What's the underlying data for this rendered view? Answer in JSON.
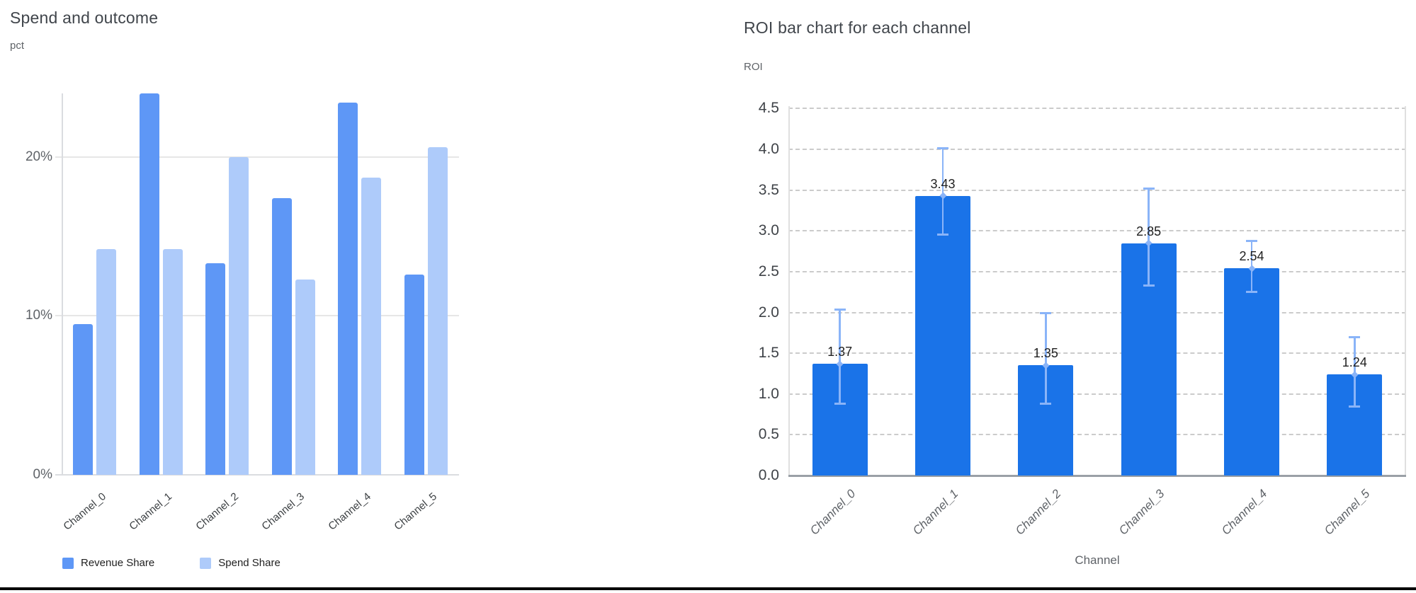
{
  "page": {
    "background": "#ffffff",
    "bottom_rule_color": "#000000"
  },
  "chart_data": [
    {
      "type": "bar",
      "title": "Spend and outcome",
      "ylabel": "pct",
      "xlabel": "",
      "categories": [
        "Channel_0",
        "Channel_1",
        "Channel_2",
        "Channel_3",
        "Channel_4",
        "Channel_5"
      ],
      "series": [
        {
          "name": "Revenue Share",
          "color": "#5e97f6",
          "values": [
            9.5,
            24.0,
            13.3,
            17.4,
            23.4,
            12.6
          ]
        },
        {
          "name": "Spend Share",
          "color": "#aecbfa",
          "values": [
            14.2,
            14.2,
            20.0,
            12.3,
            18.7,
            20.6
          ]
        }
      ],
      "yticks": [
        {
          "v": 0,
          "label": "0%"
        },
        {
          "v": 10,
          "label": "10%"
        },
        {
          "v": 20,
          "label": "20%"
        }
      ],
      "ylim": [
        0,
        24
      ],
      "grid": "horizontal-solid",
      "legend_position": "bottom-left",
      "value_unit": "percent"
    },
    {
      "type": "bar",
      "title": "ROI bar chart for each channel",
      "ylabel": "ROI",
      "xlabel": "Channel",
      "categories": [
        "Channel_0",
        "Channel_1",
        "Channel_2",
        "Channel_3",
        "Channel_4",
        "Channel_5"
      ],
      "values": [
        1.37,
        3.43,
        1.35,
        2.85,
        2.54,
        1.24
      ],
      "value_labels": [
        "1.37",
        "3.43",
        "1.35",
        "2.85",
        "2.54",
        "1.24"
      ],
      "error_low": [
        0.88,
        2.95,
        0.88,
        2.33,
        2.25,
        0.84
      ],
      "error_high": [
        2.04,
        4.02,
        2.0,
        3.52,
        2.88,
        1.7
      ],
      "yticks": [
        {
          "v": 0.0,
          "label": "0.0"
        },
        {
          "v": 0.5,
          "label": "0.5"
        },
        {
          "v": 1.0,
          "label": "1.0"
        },
        {
          "v": 1.5,
          "label": "1.5"
        },
        {
          "v": 2.0,
          "label": "2.0"
        },
        {
          "v": 2.5,
          "label": "2.5"
        },
        {
          "v": 3.0,
          "label": "3.0"
        },
        {
          "v": 3.5,
          "label": "3.5"
        },
        {
          "v": 4.0,
          "label": "4.0"
        },
        {
          "v": 4.5,
          "label": "4.5"
        }
      ],
      "ylim": [
        0,
        4.53
      ],
      "grid": "horizontal-dashed",
      "bar_color": "#1a73e8",
      "error_color": "#8ab4f8",
      "legend_position": "none"
    }
  ],
  "colors": {
    "left_grid": "#e6e6e6",
    "left_axis": "#dadce0",
    "right_grid_dashed": "#cbcbcb",
    "right_plot_border": "#e0e0e0",
    "right_baseline": "#9aa0a6"
  }
}
